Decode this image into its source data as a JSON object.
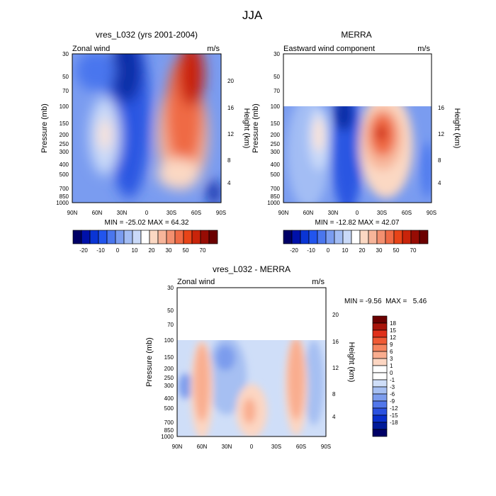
{
  "figure": {
    "title": "JJA"
  },
  "chart_data": [
    {
      "type": "heatmap",
      "title": "vres_L032 (yrs 2001-2004)",
      "left_label": "Zonal wind",
      "units_label": "m/s",
      "ylabel": "Pressure (mb)",
      "right_label": "Height (km)",
      "xticks": [
        "90N",
        "60N",
        "30N",
        "0",
        "30S",
        "60S",
        "90S"
      ],
      "yticks": [
        "30",
        "50",
        "70",
        "100",
        "150",
        "200",
        "250",
        "300",
        "400",
        "500",
        "700",
        "850",
        "1000"
      ],
      "right_ticks": [
        "20",
        "16",
        "12",
        "8",
        "4"
      ],
      "xlim": [
        90,
        -90
      ],
      "ylim": [
        1000,
        30
      ],
      "y_scale": "log",
      "data_top_mb": 30,
      "stats": "MIN = -25.02  MAX = 64.32",
      "color_levels": [
        -20,
        -10,
        0,
        10,
        20,
        30,
        50,
        70
      ],
      "features": [
        {
          "kind": "min",
          "lat": 15,
          "p": 35,
          "value": -25.02
        },
        {
          "kind": "max",
          "lat": -50,
          "p": 50,
          "value": 64.32
        },
        {
          "kind": "jet",
          "lat": -35,
          "p": 200,
          "value": 35
        },
        {
          "kind": "jet",
          "lat": 45,
          "p": 200,
          "value": 18
        }
      ]
    },
    {
      "type": "heatmap",
      "title": "MERRA",
      "left_label": "Eastward wind component",
      "units_label": "m/s",
      "ylabel": "Pressure (mb)",
      "right_label": "Height (km)",
      "xticks": [
        "90N",
        "60N",
        "30N",
        "0",
        "30S",
        "60S",
        "90S"
      ],
      "yticks": [
        "30",
        "50",
        "70",
        "100",
        "150",
        "200",
        "250",
        "300",
        "400",
        "500",
        "700",
        "850",
        "1000"
      ],
      "right_ticks": [
        "16",
        "12",
        "8",
        "4"
      ],
      "xlim": [
        90,
        -90
      ],
      "ylim": [
        1000,
        30
      ],
      "y_scale": "log",
      "data_top_mb": 100,
      "stats": "MIN = -12.82  MAX = 42.07",
      "color_levels": [
        -20,
        -10,
        0,
        10,
        20,
        30,
        50,
        70
      ],
      "features": [
        {
          "kind": "max",
          "lat": -35,
          "p": 200,
          "value": 42.07
        },
        {
          "kind": "jet",
          "lat": 45,
          "p": 200,
          "value": 18
        },
        {
          "kind": "min",
          "lat": 10,
          "p": 120,
          "value": -12.82
        }
      ]
    },
    {
      "type": "heatmap",
      "title": "vres_L032 - MERRA",
      "left_label": "Zonal wind",
      "units_label": "m/s",
      "ylabel": "Pressure (mb)",
      "right_label": "Height (km)",
      "xticks": [
        "90N",
        "60N",
        "30N",
        "0",
        "30S",
        "60S",
        "90S"
      ],
      "yticks": [
        "30",
        "50",
        "70",
        "100",
        "150",
        "200",
        "250",
        "300",
        "400",
        "500",
        "700",
        "850",
        "1000"
      ],
      "right_ticks": [
        "20",
        "16",
        "12",
        "8",
        "4"
      ],
      "xlim": [
        90,
        -90
      ],
      "ylim": [
        1000,
        30
      ],
      "y_scale": "log",
      "data_top_mb": 100,
      "stats": "MIN = -9.56  MAX =   5.46",
      "color_levels": [
        -18,
        -15,
        -12,
        -9,
        -6,
        -3,
        -1,
        0,
        1,
        3,
        6,
        9,
        12,
        15,
        18
      ],
      "features": [
        {
          "kind": "pos",
          "lat": 52,
          "p": 300,
          "value": 4
        },
        {
          "kind": "pos",
          "lat": -42,
          "p": 250,
          "value": 5.46
        },
        {
          "kind": "pos",
          "lat": 5,
          "p": 500,
          "value": 3
        },
        {
          "kind": "neg",
          "lat": 22,
          "p": 250,
          "value": -4
        },
        {
          "kind": "neg",
          "lat": -62,
          "p": 300,
          "value": -3
        },
        {
          "kind": "neg",
          "lat": 80,
          "p": 400,
          "value": -2
        }
      ]
    }
  ],
  "colorbars": {
    "horizontal": {
      "labels": [
        "-20",
        "-10",
        "0",
        "10",
        "20",
        "30",
        "50",
        "70"
      ],
      "colors": [
        "#000066",
        "#0011aa",
        "#0a35d4",
        "#2255ee",
        "#4a76ee",
        "#7a9cf0",
        "#a3bdf4",
        "#c9d9f8",
        "#ffffff",
        "#fbd8c3",
        "#f7b59a",
        "#f39070",
        "#ef6a45",
        "#e84418",
        "#c9240a",
        "#970c04",
        "#6b0000"
      ]
    },
    "vertical": {
      "labels": [
        "18",
        "15",
        "12",
        "9",
        "6",
        "3",
        "1",
        "0",
        "-1",
        "-3",
        "-6",
        "-9",
        "-12",
        "-15",
        "-18"
      ],
      "colors": [
        "#6b0000",
        "#a8140a",
        "#e0301a",
        "#ef5a35",
        "#f5845f",
        "#f9ad8f",
        "#fcd6c2",
        "#ffffff",
        "#ffffff",
        "#cfdef8",
        "#a6bff2",
        "#7c9ced",
        "#5277ea",
        "#2c52e0",
        "#0a2fcc",
        "#001a99",
        "#000066"
      ]
    }
  }
}
